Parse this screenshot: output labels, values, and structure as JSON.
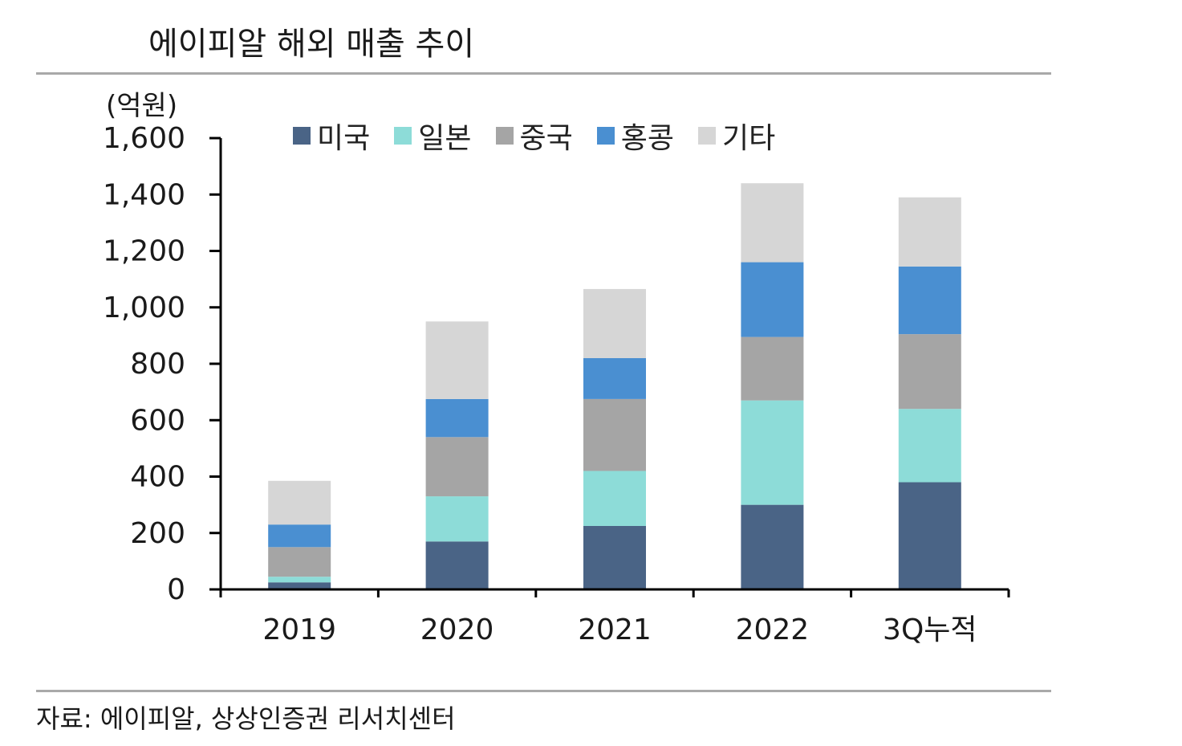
{
  "title": "에이피알 해외 매출 추이",
  "source": "자료: 에이피알, 상상인증권 리서치센터",
  "chart_data": {
    "type": "bar",
    "stacked": true,
    "unit_label": "(억원)",
    "categories": [
      "2019",
      "2020",
      "2021",
      "2022",
      "3Q누적"
    ],
    "yticks": [
      "0",
      "200",
      "400",
      "600",
      "800",
      "1,000",
      "1,200",
      "1,400",
      "1,600"
    ],
    "ylim": [
      0,
      1600
    ],
    "legend_position": "top",
    "series": [
      {
        "name": "미국",
        "color": "#4a6486",
        "values": [
          25,
          170,
          225,
          300,
          380
        ]
      },
      {
        "name": "일본",
        "color": "#8ddcd8",
        "values": [
          20,
          160,
          195,
          370,
          260
        ]
      },
      {
        "name": "중국",
        "color": "#a5a5a5",
        "values": [
          105,
          210,
          255,
          225,
          265
        ]
      },
      {
        "name": "홍콩",
        "color": "#4a8fd1",
        "values": [
          80,
          135,
          145,
          265,
          240
        ]
      },
      {
        "name": "기타",
        "color": "#d6d6d6",
        "values": [
          155,
          275,
          245,
          280,
          245
        ]
      }
    ]
  }
}
